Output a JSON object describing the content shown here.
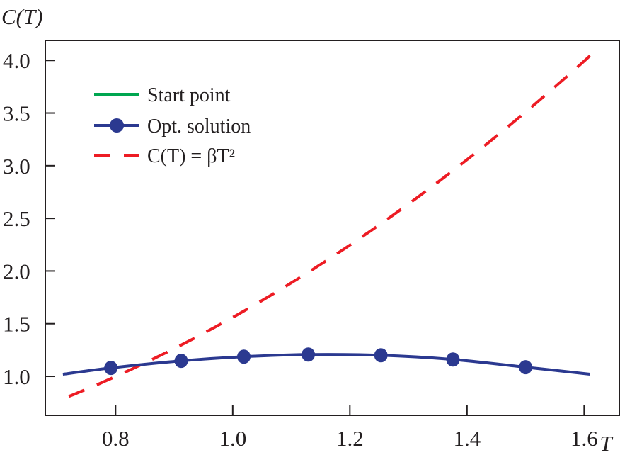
{
  "chart_data": {
    "type": "line",
    "ylabel": "C(T)",
    "xlabel": "T",
    "xlim": [
      0.68,
      1.66
    ],
    "ylim": [
      0.63,
      4.19
    ],
    "xticks": [
      "0.8",
      "1.0",
      "1.2",
      "1.4",
      "1.6"
    ],
    "xtick_values": [
      0.8,
      1.0,
      1.2,
      1.4,
      1.6
    ],
    "yticks": [
      "1.0",
      "1.5",
      "2.0",
      "2.5",
      "3.0",
      "3.5",
      "4.0"
    ],
    "ytick_values": [
      1.0,
      1.5,
      2.0,
      2.5,
      3.0,
      3.5,
      4.0
    ],
    "grid": false,
    "legend_position": "top-left",
    "legend": [
      {
        "label": "Start point",
        "color": "#00a650",
        "style": "solid"
      },
      {
        "label": "Opt. solution",
        "color": "#2b3990",
        "style": "solid-markers"
      },
      {
        "label_parts": [
          "C",
          "(",
          "T",
          ") = βT",
          "2"
        ],
        "label": "C(T) = βT²",
        "color": "#ed1c24",
        "style": "dashed"
      }
    ],
    "series": [
      {
        "name": "Opt. solution",
        "color": "#2b3990",
        "line": [
          [
            0.71,
            1.02
          ],
          [
            0.792,
            1.08
          ],
          [
            0.912,
            1.147
          ],
          [
            1.019,
            1.187
          ],
          [
            1.129,
            1.207
          ],
          [
            1.253,
            1.2
          ],
          [
            1.376,
            1.16
          ],
          [
            1.5,
            1.087
          ],
          [
            1.61,
            1.02
          ]
        ],
        "markers": [
          [
            0.792,
            1.08
          ],
          [
            0.912,
            1.147
          ],
          [
            1.019,
            1.187
          ],
          [
            1.129,
            1.207
          ],
          [
            1.253,
            1.2
          ],
          [
            1.376,
            1.16
          ],
          [
            1.5,
            1.087
          ]
        ]
      },
      {
        "name": "C(T) = βT²",
        "color": "#ed1c24",
        "beta": 1.56,
        "x_range": [
          0.72,
          1.61
        ]
      }
    ]
  }
}
